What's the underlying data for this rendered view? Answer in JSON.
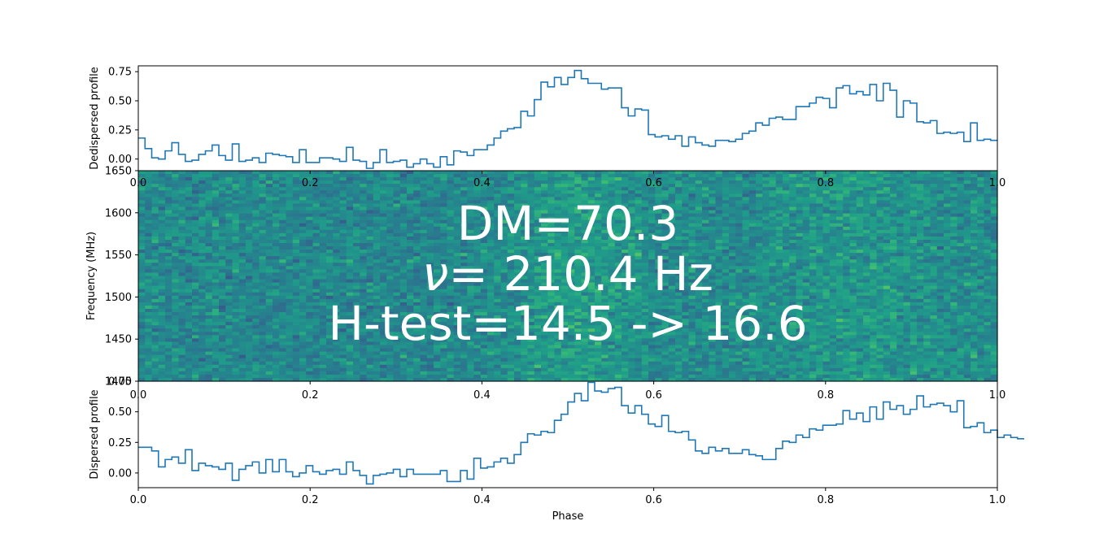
{
  "chart_data": [
    {
      "type": "line",
      "panel": "top",
      "ylabel": "Dedispersed profile",
      "xlabel": "",
      "xlim": [
        0,
        1
      ],
      "ylim": [
        -0.1,
        0.8
      ],
      "xticks": [
        "0.0",
        "0.2",
        "0.4",
        "0.6",
        "0.8",
        "1.0"
      ],
      "yticks": [
        0.0,
        0.25,
        0.5,
        0.75
      ],
      "ytick_labels": [
        "0.00",
        "0.25",
        "0.50",
        "0.75"
      ],
      "series_color": "#1f77b4",
      "drawstyle": "steps",
      "bin_width": 0.0078125,
      "values": [
        0.18,
        0.09,
        0.01,
        0.0,
        0.07,
        0.14,
        0.04,
        -0.02,
        -0.01,
        0.04,
        0.07,
        0.12,
        0.03,
        -0.01,
        0.13,
        -0.02,
        -0.01,
        0.01,
        -0.03,
        0.05,
        0.04,
        0.03,
        0.02,
        -0.03,
        0.08,
        -0.03,
        -0.03,
        0.01,
        0.01,
        0.0,
        -0.02,
        0.1,
        -0.01,
        -0.02,
        -0.08,
        -0.03,
        0.08,
        -0.03,
        -0.02,
        -0.01,
        -0.07,
        -0.04,
        0.0,
        -0.04,
        -0.07,
        0.02,
        -0.05,
        0.07,
        0.06,
        0.03,
        0.08,
        0.08,
        0.12,
        0.18,
        0.24,
        0.26,
        0.27,
        0.41,
        0.37,
        0.51,
        0.66,
        0.62,
        0.7,
        0.64,
        0.7,
        0.76,
        0.69,
        0.65,
        0.65,
        0.6,
        0.61,
        0.61,
        0.44,
        0.37,
        0.43,
        0.42,
        0.21,
        0.19,
        0.2,
        0.17,
        0.2,
        0.11,
        0.19,
        0.14,
        0.12,
        0.11,
        0.16,
        0.16,
        0.15,
        0.17,
        0.22,
        0.24,
        0.31,
        0.29,
        0.35,
        0.36,
        0.34,
        0.34,
        0.45,
        0.45,
        0.48,
        0.53,
        0.52,
        0.44,
        0.61,
        0.63,
        0.56,
        0.58,
        0.55,
        0.64,
        0.5,
        0.65,
        0.59,
        0.36,
        0.5,
        0.48,
        0.32,
        0.31,
        0.33,
        0.22,
        0.23,
        0.22,
        0.23,
        0.15,
        0.31,
        0.16,
        0.17,
        0.16
      ]
    },
    {
      "type": "heatmap",
      "panel": "middle",
      "ylabel": "Frequency (MHz)",
      "xlim": [
        0,
        1
      ],
      "ylim": [
        1400,
        1650
      ],
      "xticks": [
        "0.0",
        "0.2",
        "0.4",
        "0.6",
        "0.8",
        "1.0"
      ],
      "yticks": [
        1400,
        1450,
        1500,
        1550,
        1600,
        1650
      ],
      "ytick_labels": [
        "1400",
        "1450",
        "1500",
        "1550",
        "1600",
        "1650"
      ],
      "colormap": "viridis",
      "annotation_lines": [
        "DM=70.3",
        "$\\nu$= 210.4 Hz",
        "H-test=14.5 -> 16.6"
      ]
    },
    {
      "type": "line",
      "panel": "bottom",
      "ylabel": "Dispersed profile",
      "xlabel": "Phase",
      "xlim": [
        0,
        1
      ],
      "ylim": [
        -0.12,
        0.75
      ],
      "xticks": [
        "0.0",
        "0.2",
        "0.4",
        "0.6",
        "0.8",
        "1.0"
      ],
      "yticks": [
        0.0,
        0.25,
        0.5,
        0.75
      ],
      "ytick_labels": [
        "0.00",
        "0.25",
        "0.50",
        "0.75"
      ],
      "series_color": "#1f77b4",
      "drawstyle": "steps",
      "bin_width": 0.0078125,
      "values": [
        0.21,
        0.21,
        0.18,
        0.05,
        0.11,
        0.13,
        0.08,
        0.19,
        0.02,
        0.08,
        0.06,
        0.05,
        0.03,
        0.08,
        -0.06,
        0.03,
        0.06,
        0.09,
        0.0,
        0.11,
        0.01,
        0.11,
        0.01,
        -0.03,
        0.0,
        0.06,
        0.01,
        -0.01,
        0.02,
        0.03,
        -0.01,
        0.09,
        0.02,
        -0.02,
        -0.09,
        -0.02,
        -0.01,
        0.0,
        0.03,
        -0.03,
        0.03,
        -0.01,
        -0.01,
        -0.01,
        -0.01,
        0.02,
        -0.07,
        -0.07,
        0.02,
        -0.05,
        0.12,
        0.04,
        0.05,
        0.09,
        0.12,
        0.08,
        0.15,
        0.25,
        0.32,
        0.31,
        0.34,
        0.33,
        0.43,
        0.48,
        0.58,
        0.65,
        0.59,
        0.74,
        0.67,
        0.66,
        0.69,
        0.7,
        0.55,
        0.49,
        0.55,
        0.48,
        0.4,
        0.38,
        0.47,
        0.34,
        0.33,
        0.34,
        0.27,
        0.18,
        0.16,
        0.21,
        0.18,
        0.2,
        0.16,
        0.16,
        0.19,
        0.15,
        0.14,
        0.11,
        0.11,
        0.2,
        0.26,
        0.25,
        0.31,
        0.29,
        0.36,
        0.35,
        0.39,
        0.39,
        0.4,
        0.51,
        0.44,
        0.49,
        0.42,
        0.54,
        0.44,
        0.58,
        0.52,
        0.55,
        0.48,
        0.52,
        0.63,
        0.54,
        0.56,
        0.57,
        0.55,
        0.5,
        0.59,
        0.37,
        0.38,
        0.41,
        0.33,
        0.35,
        0.29,
        0.31,
        0.29,
        0.28
      ]
    }
  ]
}
